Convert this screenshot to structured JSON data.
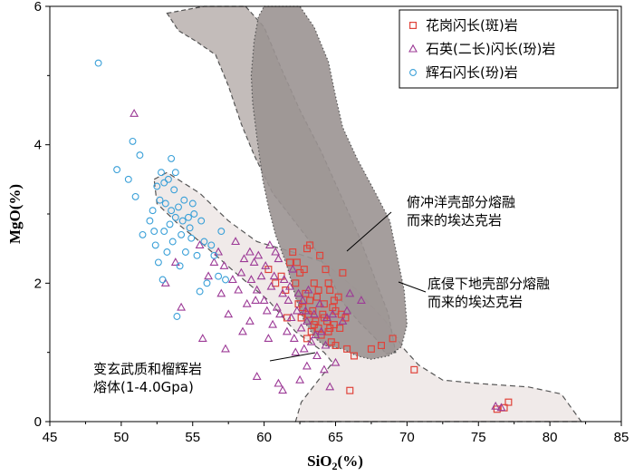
{
  "chart_data": {
    "type": "scatter",
    "title": "",
    "xlabel": "SiO2(%)",
    "ylabel": "MgO(%)",
    "xlabel_parts": {
      "base": "SiO",
      "sub": "2",
      "tail": "(%)"
    },
    "xlim": [
      45,
      85
    ],
    "ylim": [
      0,
      6
    ],
    "x_ticks": [
      "45",
      "50",
      "55",
      "60",
      "65",
      "70",
      "75",
      "80",
      "85"
    ],
    "y_ticks": [
      "0",
      "2",
      "4",
      "6"
    ],
    "legend_position": "top-right",
    "colors": {
      "granite": "#e0433a",
      "quartz": "#9c3a96",
      "diorite": "#3aa0d8",
      "field_light": "#efe9e8",
      "field_dark": "#9b9392",
      "field_mid": "#b8b0ae",
      "field_edge": "#555555"
    },
    "series": [
      {
        "name": "花岗闪长(斑)岩",
        "marker": "square",
        "points": [
          [
            60.3,
            2.2
          ],
          [
            60.8,
            2.0
          ],
          [
            61.2,
            2.1
          ],
          [
            61.5,
            1.9
          ],
          [
            61.8,
            2.3
          ],
          [
            62.0,
            2.45
          ],
          [
            62.2,
            2.0
          ],
          [
            62.4,
            1.7
          ],
          [
            62.5,
            2.15
          ],
          [
            62.6,
            1.5
          ],
          [
            62.8,
            2.2
          ],
          [
            62.9,
            1.85
          ],
          [
            63.0,
            2.5
          ],
          [
            63.1,
            1.55
          ],
          [
            63.2,
            1.75
          ],
          [
            63.3,
            1.3
          ],
          [
            63.4,
            1.6
          ],
          [
            63.5,
            2.0
          ],
          [
            63.6,
            1.45
          ],
          [
            63.7,
            1.8
          ],
          [
            63.8,
            1.35
          ],
          [
            63.9,
            2.4
          ],
          [
            64.0,
            1.25
          ],
          [
            64.1,
            1.55
          ],
          [
            64.2,
            1.7
          ],
          [
            64.3,
            2.2
          ],
          [
            64.4,
            1.45
          ],
          [
            64.5,
            1.3
          ],
          [
            64.6,
            1.9
          ],
          [
            64.7,
            1.15
          ],
          [
            64.8,
            1.65
          ],
          [
            64.9,
            1.4
          ],
          [
            65.0,
            1.1
          ],
          [
            65.2,
            1.8
          ],
          [
            65.3,
            1.35
          ],
          [
            65.5,
            2.15
          ],
          [
            65.7,
            1.5
          ],
          [
            65.8,
            1.05
          ],
          [
            66.0,
            0.45
          ],
          [
            66.3,
            0.95
          ],
          [
            64.2,
            1.5
          ],
          [
            63.5,
            1.4
          ],
          [
            62.7,
            1.65
          ],
          [
            63.0,
            1.2
          ],
          [
            64.6,
            1.35
          ],
          [
            65.0,
            1.6
          ],
          [
            61.6,
            1.5
          ],
          [
            63.8,
            1.9
          ],
          [
            64.9,
            1.75
          ],
          [
            62.3,
            2.3
          ],
          [
            67.5,
            1.05
          ],
          [
            68.2,
            1.1
          ],
          [
            69.0,
            1.2
          ],
          [
            70.5,
            0.75
          ],
          [
            76.3,
            0.18
          ],
          [
            76.8,
            0.2
          ],
          [
            77.1,
            0.28
          ],
          [
            63.2,
            2.55
          ],
          [
            64.5,
            2.0
          ],
          [
            65.4,
            1.55
          ]
        ]
      },
      {
        "name": "石英(二长)闪长(玢)岩",
        "marker": "triangle",
        "points": [
          [
            50.9,
            4.45
          ],
          [
            53.1,
            2.0
          ],
          [
            53.8,
            2.3
          ],
          [
            54.2,
            1.65
          ],
          [
            55.5,
            2.55
          ],
          [
            55.7,
            1.2
          ],
          [
            56.1,
            2.1
          ],
          [
            56.5,
            2.3
          ],
          [
            56.8,
            2.45
          ],
          [
            57.0,
            1.85
          ],
          [
            57.2,
            2.25
          ],
          [
            57.5,
            1.55
          ],
          [
            57.8,
            2.05
          ],
          [
            58.0,
            2.6
          ],
          [
            58.2,
            1.9
          ],
          [
            58.4,
            2.15
          ],
          [
            58.6,
            2.35
          ],
          [
            58.8,
            1.7
          ],
          [
            59.0,
            2.45
          ],
          [
            59.1,
            2.05
          ],
          [
            59.3,
            2.3
          ],
          [
            59.5,
            1.9
          ],
          [
            59.6,
            2.4
          ],
          [
            59.8,
            2.1
          ],
          [
            60.0,
            1.75
          ],
          [
            60.1,
            2.25
          ],
          [
            60.2,
            1.6
          ],
          [
            60.4,
            2.55
          ],
          [
            60.5,
            1.95
          ],
          [
            60.6,
            1.4
          ],
          [
            60.7,
            2.1
          ],
          [
            60.9,
            1.65
          ],
          [
            61.0,
            2.35
          ],
          [
            61.1,
            1.55
          ],
          [
            61.3,
            1.85
          ],
          [
            61.4,
            2.05
          ],
          [
            61.6,
            1.3
          ],
          [
            61.7,
            1.75
          ],
          [
            61.9,
            1.5
          ],
          [
            62.0,
            2.2
          ],
          [
            62.1,
            1.2
          ],
          [
            62.3,
            1.6
          ],
          [
            62.4,
            1.85
          ],
          [
            62.6,
            1.35
          ],
          [
            62.7,
            1.75
          ],
          [
            62.8,
            1.05
          ],
          [
            63.0,
            1.45
          ],
          [
            63.1,
            1.9
          ],
          [
            63.3,
            1.15
          ],
          [
            63.5,
            1.55
          ],
          [
            63.7,
            0.95
          ],
          [
            63.9,
            1.7
          ],
          [
            64.0,
            1.3
          ],
          [
            64.2,
            0.75
          ],
          [
            64.4,
            1.5
          ],
          [
            64.6,
            0.5
          ],
          [
            64.8,
            1.55
          ],
          [
            65.0,
            0.85
          ],
          [
            65.5,
            1.45
          ],
          [
            66.0,
            1.85
          ],
          [
            61.0,
            0.55
          ],
          [
            61.3,
            0.45
          ],
          [
            62.5,
            0.6
          ],
          [
            59.5,
            0.65
          ],
          [
            58.5,
            1.3
          ],
          [
            57.3,
            1.05
          ],
          [
            60.3,
            1.2
          ],
          [
            59.0,
            1.45
          ],
          [
            66.8,
            1.75
          ],
          [
            65.8,
            1.6
          ],
          [
            76.6,
            0.2
          ],
          [
            76.2,
            0.22
          ],
          [
            63.6,
            1.25
          ],
          [
            62.9,
            1.6
          ],
          [
            61.8,
            1.95
          ],
          [
            60.8,
            2.45
          ],
          [
            59.4,
            1.75
          ],
          [
            64.3,
            1.1
          ],
          [
            63.0,
            0.8
          ],
          [
            62.2,
            1.0
          ]
        ]
      },
      {
        "name": "辉石闪长(玢)岩",
        "marker": "circle",
        "points": [
          [
            48.4,
            5.18
          ],
          [
            49.7,
            3.64
          ],
          [
            50.5,
            3.5
          ],
          [
            50.8,
            4.05
          ],
          [
            51.0,
            3.25
          ],
          [
            51.3,
            3.85
          ],
          [
            51.5,
            2.7
          ],
          [
            52.0,
            2.9
          ],
          [
            52.2,
            3.05
          ],
          [
            52.4,
            2.55
          ],
          [
            52.5,
            3.4
          ],
          [
            52.6,
            2.3
          ],
          [
            52.8,
            3.6
          ],
          [
            53.0,
            2.75
          ],
          [
            53.1,
            3.15
          ],
          [
            53.2,
            2.45
          ],
          [
            53.3,
            3.5
          ],
          [
            53.4,
            2.85
          ],
          [
            53.5,
            3.05
          ],
          [
            53.6,
            2.6
          ],
          [
            53.7,
            3.35
          ],
          [
            53.8,
            2.95
          ],
          [
            53.9,
            1.52
          ],
          [
            54.0,
            3.1
          ],
          [
            54.2,
            2.7
          ],
          [
            54.4,
            3.2
          ],
          [
            54.5,
            2.45
          ],
          [
            54.7,
            2.95
          ],
          [
            54.9,
            2.65
          ],
          [
            55.1,
            3.0
          ],
          [
            55.3,
            2.4
          ],
          [
            55.5,
            1.88
          ],
          [
            55.8,
            2.6
          ],
          [
            56.0,
            2.0
          ],
          [
            56.3,
            2.55
          ],
          [
            56.8,
            2.1
          ],
          [
            57.0,
            2.75
          ],
          [
            57.3,
            2.05
          ],
          [
            53.0,
            3.45
          ],
          [
            52.9,
            2.05
          ],
          [
            54.1,
            2.25
          ],
          [
            54.8,
            2.8
          ],
          [
            55.6,
            2.9
          ],
          [
            52.3,
            2.75
          ],
          [
            53.8,
            3.6
          ],
          [
            56.5,
            2.4
          ],
          [
            54.3,
            2.9
          ],
          [
            53.5,
            3.8
          ],
          [
            52.7,
            3.2
          ],
          [
            55.0,
            3.15
          ]
        ]
      }
    ],
    "fields": [
      {
        "name": "metabasalt_amphibolite_melt",
        "label": "变玄武质和榴辉岩熔体(1-4.0Gpa)"
      },
      {
        "name": "lower_crust_adakite",
        "label": "底侵下地壳部分熔融而来的埃达克岩"
      },
      {
        "name": "subducted_oceanic_crust_adakite",
        "label": "俯冲洋壳部分熔融而来的埃达克岩"
      }
    ],
    "annotations": [
      {
        "id": "slab",
        "lines": [
          "俯冲洋壳部分熔融",
          "而来的埃达克岩"
        ]
      },
      {
        "id": "lower_crust",
        "lines": [
          "底侵下地壳部分熔融",
          "而来的埃达克岩"
        ]
      },
      {
        "id": "melt",
        "lines": [
          "变玄武质和榴辉岩",
          "熔体(1-4.0Gpa)"
        ]
      }
    ]
  }
}
